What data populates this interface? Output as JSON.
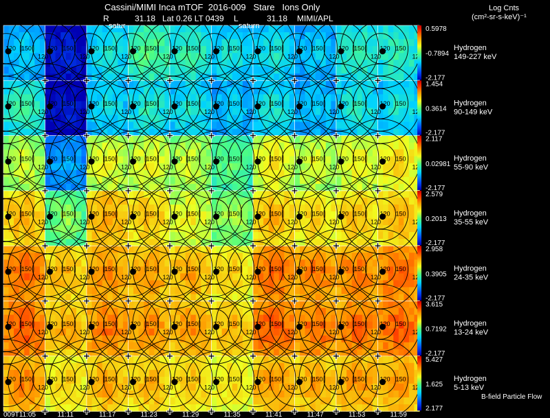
{
  "header": {
    "title": "Cassini/MIMI Inca mTOF  2016-009   Stare   Ions Only",
    "r_label": "R",
    "r_value": "31.18",
    "lat_lt": "Lat 0.26 LT 0439",
    "l_label": "L",
    "l_value": "31.18",
    "source": "MIMI/APL",
    "saturn_label_1": "satur",
    "saturn_label_2": "saturn",
    "units_line1": "Log Cnts",
    "units_line2": "(cm²-sr-s-keV)⁻¹",
    "footer_note": "B-field Particle Flow"
  },
  "chart_data": {
    "type": "heatmap",
    "title": "Cassini/MIMI Inca mTOF  2016-009   Stare   Ions Only",
    "columns": [
      "009T11:05",
      "11:11",
      "11:17",
      "11:23",
      "11:29",
      "11:35",
      "11:41",
      "11:47",
      "11:53",
      "11:59"
    ],
    "contour_labels": [
      "120",
      "150",
      "120"
    ],
    "colorbar_scale": "log",
    "rows": [
      {
        "species": "Hydrogen",
        "energy": "149-227 keV",
        "cmax": "0.5978",
        "cmid": "-0.7894",
        "cmin": "-2.177",
        "levels": [
          0.35,
          0.1,
          0.4,
          0.5,
          0.45,
          0.4,
          0.4,
          0.35,
          0.45,
          0.45
        ]
      },
      {
        "species": "Hydrogen",
        "energy": "90-149 keV",
        "cmax": "1.454",
        "cmid": "0.3614",
        "cmin": "-2.177",
        "levels": [
          0.45,
          0.08,
          0.38,
          0.42,
          0.4,
          0.35,
          0.4,
          0.35,
          0.42,
          0.4
        ]
      },
      {
        "species": "Hydrogen",
        "energy": "55-90 keV",
        "cmax": "2.117",
        "cmid": "0.02981",
        "cmin": "-2.177",
        "levels": [
          0.62,
          0.3,
          0.65,
          0.65,
          0.62,
          0.52,
          0.68,
          0.64,
          0.66,
          0.7
        ]
      },
      {
        "species": "Hydrogen",
        "energy": "35-55 keV",
        "cmax": "2.579",
        "cmid": "0.2013",
        "cmin": "-2.177",
        "levels": [
          0.76,
          0.55,
          0.78,
          0.74,
          0.66,
          0.58,
          0.76,
          0.72,
          0.74,
          0.76
        ]
      },
      {
        "species": "Hydrogen",
        "energy": "24-35 keV",
        "cmax": "2.958",
        "cmid": "0.3905",
        "cmin": "-2.177",
        "levels": [
          0.86,
          0.76,
          0.82,
          0.8,
          0.78,
          0.72,
          0.86,
          0.84,
          0.84,
          0.86
        ]
      },
      {
        "species": "Hydrogen",
        "energy": "13-24 keV",
        "cmax": "3.615",
        "cmid": "0.7192",
        "cmin": "-2.177",
        "levels": [
          0.88,
          0.78,
          0.84,
          0.82,
          0.8,
          0.76,
          0.88,
          0.86,
          0.86,
          0.88
        ]
      },
      {
        "species": "Hydrogen",
        "energy": "5-13 keV",
        "cmax": "5.427",
        "cmid": "1.625",
        "cmin": "2.177",
        "levels": [
          0.82,
          0.72,
          0.78,
          0.76,
          0.74,
          0.7,
          0.8,
          0.78,
          0.8,
          0.8
        ]
      }
    ]
  }
}
